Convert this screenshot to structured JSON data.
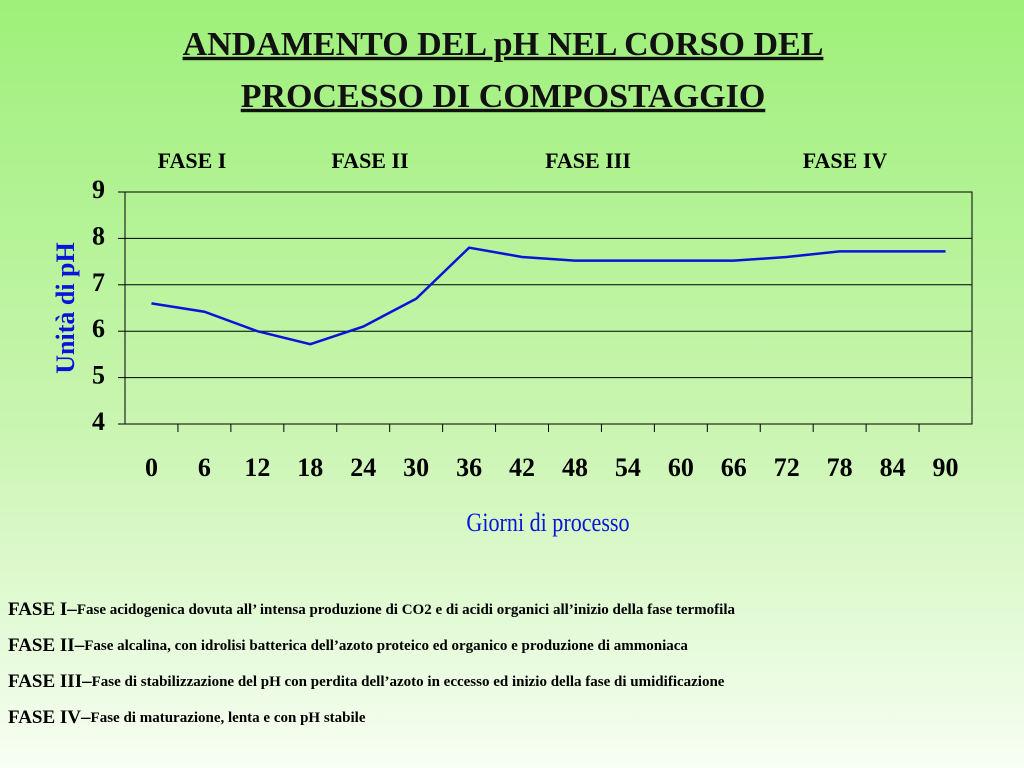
{
  "chart_data": {
    "type": "line",
    "title": [
      "ANDAMENTO DEL pH NEL CORSO DEL",
      "PROCESSO DI COMPOSTAGGIO"
    ],
    "phase_labels": [
      "FASE I",
      "FASE II",
      "FASE III",
      "FASE IV"
    ],
    "x_label": "Giorni di processo",
    "y_label": "Unità di pH",
    "x": [
      0,
      6,
      12,
      18,
      24,
      30,
      36,
      42,
      48,
      54,
      60,
      66,
      72,
      78,
      84,
      90
    ],
    "series": [
      {
        "color": "#0a14d8",
        "values": [
          6.6,
          6.42,
          6.0,
          5.72,
          6.1,
          6.7,
          7.8,
          7.6,
          7.52,
          7.52,
          7.52,
          7.52,
          7.6,
          7.72,
          7.72,
          7.72
        ]
      }
    ],
    "xlim": [
      -3,
      93
    ],
    "xticks": [
      0,
      6,
      12,
      18,
      24,
      30,
      36,
      42,
      48,
      54,
      60,
      66,
      72,
      78,
      84,
      90
    ],
    "ylim": [
      4,
      9
    ],
    "yticks": [
      4,
      5,
      6,
      7,
      8,
      9
    ],
    "grid": true,
    "notes": [
      {
        "label": "FASE I–",
        "text": "Fase acidogenica dovuta all’ intensa produzione di CO2 e di acidi organici all’inizio della  fase termofila"
      },
      {
        "label": "FASE II–",
        "text": "Fase alcalina, con idrolisi batterica dell’azoto proteico ed organico e produzione di ammoniaca"
      },
      {
        "label": "FASE III–",
        "text": "Fase di stabilizzazione del pH con perdita dell’azoto in eccesso ed inizio della fase di umidificazione"
      },
      {
        "label": "FASE IV–",
        "text": "Fase di maturazione, lenta e con pH stabile"
      }
    ]
  }
}
